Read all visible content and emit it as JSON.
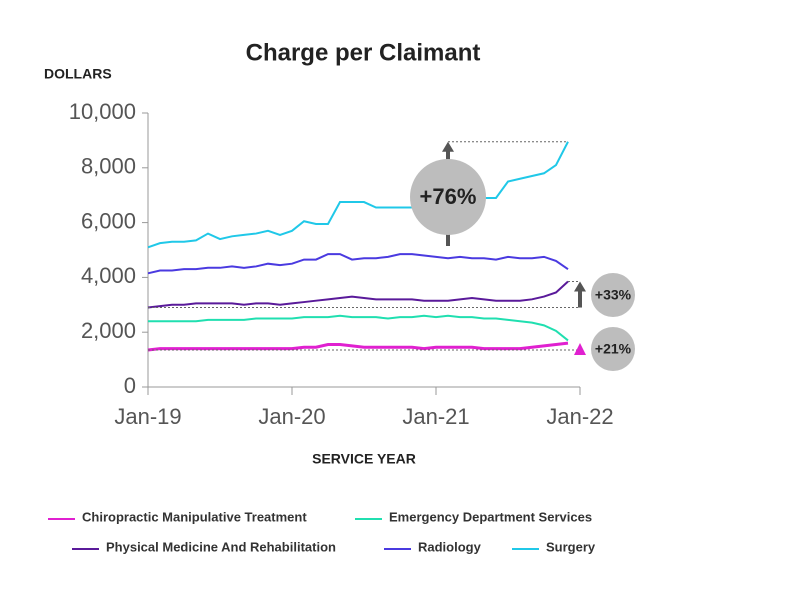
{
  "chart_data": {
    "type": "line",
    "title": "Charge per Claimant",
    "y_label": "DOLLARS",
    "x_label": "SERVICE YEAR",
    "x": [
      "2019-01",
      "2019-02",
      "2019-03",
      "2019-04",
      "2019-05",
      "2019-06",
      "2019-07",
      "2019-08",
      "2019-09",
      "2019-10",
      "2019-11",
      "2019-12",
      "2020-01",
      "2020-02",
      "2020-03",
      "2020-04",
      "2020-05",
      "2020-06",
      "2020-07",
      "2020-08",
      "2020-09",
      "2020-10",
      "2020-11",
      "2020-12",
      "2021-01",
      "2021-02",
      "2021-03",
      "2021-04",
      "2021-05",
      "2021-06",
      "2021-07",
      "2021-08",
      "2021-09",
      "2021-10",
      "2021-11",
      "2021-12"
    ],
    "xlim": [
      "2019-01",
      "2022-01"
    ],
    "xticks": [
      {
        "value": "2019-01",
        "label": "Jan-19"
      },
      {
        "value": "2020-01",
        "label": "Jan-20"
      },
      {
        "value": "2021-01",
        "label": "Jan-21"
      },
      {
        "value": "2022-01",
        "label": "Jan-22"
      }
    ],
    "ylim": [
      0,
      10000
    ],
    "yticks": [
      0,
      {
        "value": 2000,
        "label": "2,000"
      },
      {
        "value": 4000,
        "label": "4,000"
      },
      {
        "value": 6000,
        "label": "6,000"
      },
      {
        "value": 8000,
        "label": "8,000"
      },
      {
        "value": 10000,
        "label": "10,000"
      }
    ],
    "series": [
      {
        "name": "Chiropractic Manipulative Treatment",
        "color": "#e020d0",
        "values": [
          1350,
          1400,
          1400,
          1400,
          1400,
          1400,
          1400,
          1400,
          1400,
          1400,
          1400,
          1400,
          1400,
          1450,
          1450,
          1550,
          1550,
          1500,
          1450,
          1450,
          1450,
          1450,
          1450,
          1400,
          1450,
          1450,
          1450,
          1450,
          1400,
          1400,
          1400,
          1400,
          1450,
          1500,
          1550,
          1600
        ]
      },
      {
        "name": "Emergency Department Services",
        "color": "#20dfb0",
        "values": [
          2400,
          2400,
          2400,
          2400,
          2400,
          2450,
          2450,
          2450,
          2450,
          2500,
          2500,
          2500,
          2500,
          2550,
          2550,
          2550,
          2600,
          2550,
          2550,
          2550,
          2500,
          2550,
          2550,
          2600,
          2550,
          2600,
          2550,
          2550,
          2500,
          2500,
          2450,
          2400,
          2350,
          2250,
          2050,
          1700
        ]
      },
      {
        "name": "Physical Medicine And Rehabilitation",
        "color": "#5a1a9a",
        "values": [
          2900,
          2950,
          3000,
          3000,
          3050,
          3050,
          3050,
          3050,
          3000,
          3050,
          3050,
          3000,
          3050,
          3100,
          3150,
          3200,
          3250,
          3300,
          3250,
          3200,
          3200,
          3200,
          3200,
          3150,
          3150,
          3150,
          3200,
          3250,
          3200,
          3150,
          3150,
          3150,
          3200,
          3300,
          3450,
          3850
        ]
      },
      {
        "name": "Radiology",
        "color": "#4a3ae0",
        "values": [
          4150,
          4250,
          4250,
          4300,
          4300,
          4350,
          4350,
          4400,
          4350,
          4400,
          4500,
          4450,
          4500,
          4650,
          4650,
          4850,
          4850,
          4650,
          4700,
          4700,
          4750,
          4850,
          4850,
          4800,
          4750,
          4700,
          4750,
          4700,
          4700,
          4650,
          4750,
          4700,
          4700,
          4750,
          4600,
          4300
        ]
      },
      {
        "name": "Surgery",
        "color": "#20c8e8",
        "values": [
          5100,
          5250,
          5300,
          5300,
          5350,
          5600,
          5400,
          5500,
          5550,
          5600,
          5700,
          5550,
          5700,
          6050,
          5950,
          5950,
          6750,
          6750,
          6750,
          6550,
          6550,
          6550,
          6550,
          6650,
          6750,
          6700,
          6600,
          6700,
          6900,
          6900,
          7500,
          7600,
          7700,
          7800,
          8100,
          8950
        ]
      }
    ],
    "annotations": [
      "+76%",
      "+33%",
      "+21%"
    ]
  }
}
